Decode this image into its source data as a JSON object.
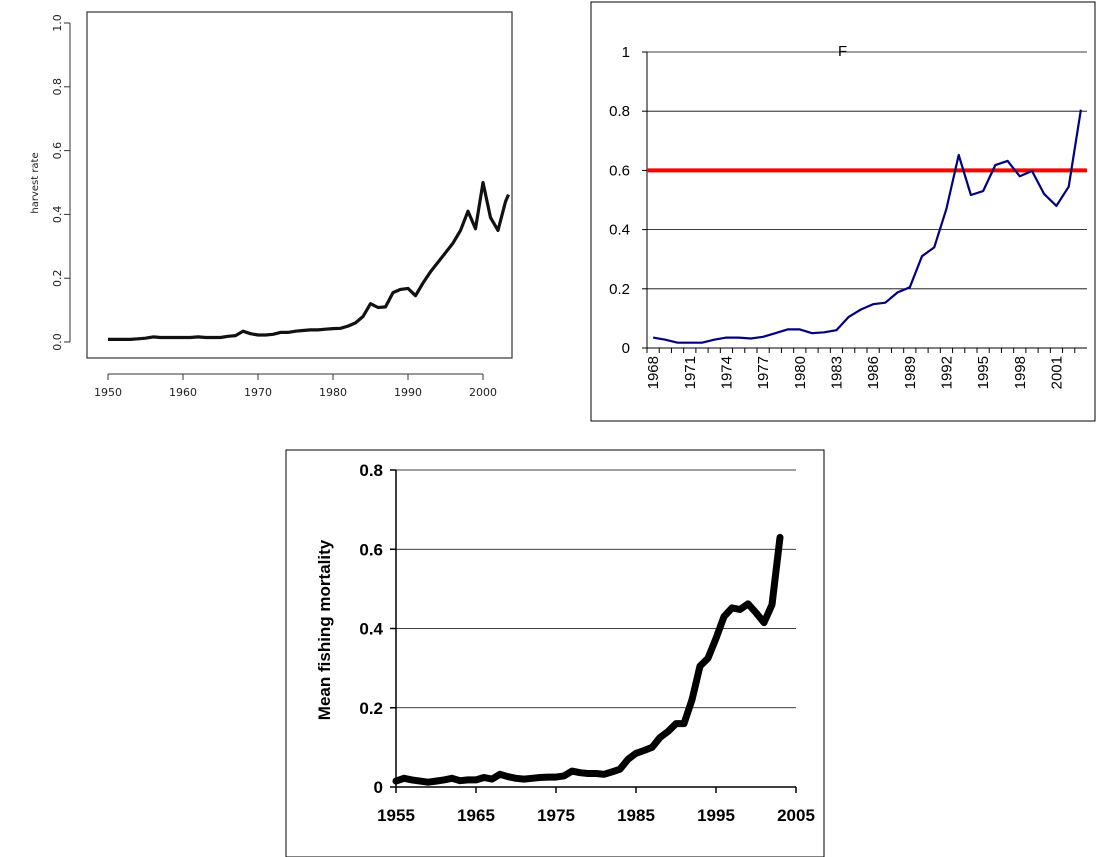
{
  "chart_data": [
    {
      "type": "line",
      "title": "",
      "xlabel": "",
      "ylabel": "harvest rate",
      "xlim": [
        1950,
        2003
      ],
      "ylim": [
        0,
        1
      ],
      "xticks": [
        "1950",
        "1960",
        "1970",
        "1980",
        "1990",
        "2000"
      ],
      "yticks": [
        "0.0",
        "0.2",
        "0.4",
        "0.6",
        "0.8",
        "1.0"
      ],
      "grid": false,
      "series": [
        {
          "x": [
            1950,
            1951,
            1952,
            1953,
            1954,
            1955,
            1956,
            1957,
            1958,
            1959,
            1960,
            1961,
            1962,
            1963,
            1964,
            1965,
            1966,
            1967,
            1968,
            1969,
            1970,
            1971,
            1972,
            1973,
            1974,
            1975,
            1976,
            1977,
            1978,
            1979,
            1980,
            1981,
            1982,
            1983,
            1984,
            1985,
            1986,
            1987,
            1988,
            1989,
            1990,
            1991,
            1992,
            1993,
            1994,
            1995,
            1996,
            1997,
            1998,
            1999,
            2000,
            2001,
            2002,
            2003
          ],
          "y": [
            0.008,
            0.008,
            0.008,
            0.008,
            0.01,
            0.012,
            0.016,
            0.014,
            0.014,
            0.014,
            0.014,
            0.014,
            0.016,
            0.014,
            0.014,
            0.014,
            0.018,
            0.02,
            0.034,
            0.026,
            0.022,
            0.022,
            0.024,
            0.03,
            0.03,
            0.034,
            0.036,
            0.038,
            0.038,
            0.04,
            0.042,
            0.043,
            0.05,
            0.06,
            0.08,
            0.12,
            0.108,
            0.11,
            0.155,
            0.165,
            0.168,
            0.145,
            0.185,
            0.22,
            0.25,
            0.28,
            0.31,
            0.35,
            0.41,
            0.355,
            0.5,
            0.39,
            0.35,
            0.44
          ]
        }
      ],
      "extra_point": {
        "x": 2003,
        "y": 0.462
      }
    },
    {
      "type": "line",
      "title": "F",
      "xlabel": "",
      "ylabel": "",
      "ylim": [
        0,
        1
      ],
      "categories": [
        "1968",
        "1969",
        "1970",
        "1971",
        "1972",
        "1973",
        "1974",
        "1975",
        "1976",
        "1977",
        "1978",
        "1979",
        "1980",
        "1981",
        "1982",
        "1983",
        "1984",
        "1985",
        "1986",
        "1987",
        "1988",
        "1989",
        "1990",
        "1991",
        "1992",
        "1993",
        "1994",
        "1995",
        "1996",
        "1997",
        "1998",
        "1999",
        "2000",
        "2001",
        "2002",
        "2003"
      ],
      "xticks_shown": [
        "1968",
        "1971",
        "1974",
        "1977",
        "1980",
        "1983",
        "1986",
        "1989",
        "1992",
        "1995",
        "1998",
        "2001"
      ],
      "yticks": [
        "0",
        "0.2",
        "0.4",
        "0.6",
        "0.8",
        "1"
      ],
      "grid": true,
      "series": [
        {
          "color": "#000080",
          "values": [
            0.035,
            0.028,
            0.018,
            0.018,
            0.018,
            0.028,
            0.035,
            0.035,
            0.032,
            0.038,
            0.05,
            0.063,
            0.063,
            0.05,
            0.053,
            0.06,
            0.105,
            0.13,
            0.148,
            0.153,
            0.188,
            0.205,
            0.31,
            0.34,
            0.47,
            0.652,
            0.517,
            0.53,
            0.618,
            0.632,
            0.58,
            0.598,
            0.52,
            0.48,
            0.545,
            0.805
          ]
        }
      ],
      "reference_line": {
        "y": 0.6,
        "color": "#ff0000"
      }
    },
    {
      "type": "line",
      "title": "",
      "xlabel": "",
      "ylabel": "Mean fishing mortality",
      "xlim": [
        1955,
        2005
      ],
      "ylim": [
        0,
        0.8
      ],
      "xticks": [
        "1955",
        "1965",
        "1975",
        "1985",
        "1995",
        "2005"
      ],
      "yticks": [
        "0",
        "0.2",
        "0.4",
        "0.6",
        "0.8"
      ],
      "grid": true,
      "series": [
        {
          "color": "#000000",
          "x": [
            1955,
            1956,
            1957,
            1958,
            1959,
            1960,
            1961,
            1962,
            1963,
            1964,
            1965,
            1966,
            1967,
            1968,
            1969,
            1970,
            1971,
            1972,
            1973,
            1974,
            1975,
            1976,
            1977,
            1978,
            1979,
            1980,
            1981,
            1982,
            1983,
            1984,
            1985,
            1986,
            1987,
            1988,
            1989,
            1990,
            1991,
            1992,
            1993,
            1994,
            1995,
            1996,
            1997,
            1998,
            1999,
            2000,
            2001,
            2002,
            2003
          ],
          "y": [
            0.015,
            0.022,
            0.018,
            0.015,
            0.012,
            0.015,
            0.018,
            0.022,
            0.016,
            0.018,
            0.018,
            0.024,
            0.02,
            0.032,
            0.026,
            0.022,
            0.02,
            0.022,
            0.024,
            0.025,
            0.025,
            0.028,
            0.04,
            0.036,
            0.034,
            0.034,
            0.032,
            0.038,
            0.045,
            0.07,
            0.085,
            0.092,
            0.1,
            0.125,
            0.14,
            0.16,
            0.16,
            0.22,
            0.305,
            0.325,
            0.375,
            0.43,
            0.452,
            0.448,
            0.462,
            0.44,
            0.415,
            0.46,
            0.63
          ]
        }
      ]
    }
  ]
}
